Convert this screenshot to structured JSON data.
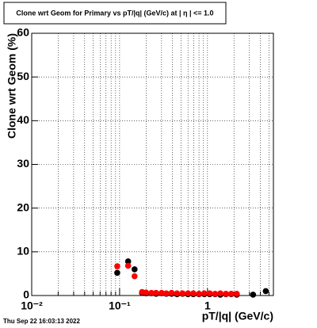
{
  "chart_data": {
    "type": "scatter",
    "title": "Clone wrt Geom for Primary vs pT/|q| (GeV/c) at |  η  | <= 1.0",
    "x_label": "pT/|q| (GeV/c)",
    "y_label": "Clone wrt Geom (%)",
    "timestamp": "Thu Sep 22 16:03:13 2022",
    "xscale": "log",
    "xlim": [
      0.01,
      5.62
    ],
    "ylim": [
      0,
      60
    ],
    "xticks": [
      {
        "value": 0.01,
        "label": "10⁻²"
      },
      {
        "value": 0.1,
        "label": "10⁻¹"
      },
      1
    ],
    "xminorticks": [
      0.02,
      0.03,
      0.04,
      0.05,
      0.06,
      0.07,
      0.08,
      0.09,
      0.2,
      0.3,
      0.4,
      0.5,
      0.6,
      0.7,
      0.8,
      0.9,
      2,
      3,
      4,
      5
    ],
    "yticks": [
      0,
      10,
      20,
      30,
      40,
      50,
      60
    ],
    "grid": true,
    "series": [
      {
        "name": "black",
        "color": "#000000",
        "x": [
          0.094,
          0.125,
          0.148,
          0.18,
          0.2,
          0.23,
          0.26,
          0.3,
          0.34,
          0.39,
          0.45,
          0.52,
          0.6,
          0.69,
          0.8,
          0.92,
          1.06,
          1.22,
          1.4,
          1.62,
          1.86,
          2.15,
          3.3,
          4.6
        ],
        "values": [
          5.2,
          7.8,
          6.0,
          0.6,
          0.5,
          0.5,
          0.4,
          0.5,
          0.4,
          0.4,
          0.3,
          0.4,
          0.3,
          0.3,
          0.3,
          0.3,
          0.3,
          0.3,
          0.2,
          0.3,
          0.3,
          0.2,
          0.2,
          1.0
        ]
      },
      {
        "name": "red",
        "color": "#ff0000",
        "x": [
          0.094,
          0.125,
          0.148,
          0.18,
          0.2,
          0.23,
          0.26,
          0.3,
          0.34,
          0.39,
          0.45,
          0.52,
          0.6,
          0.69,
          0.8,
          0.92,
          1.06,
          1.22,
          1.4,
          1.62,
          1.86,
          2.15
        ],
        "values": [
          6.7,
          6.8,
          4.4,
          0.8,
          0.7,
          0.6,
          0.6,
          0.6,
          0.5,
          0.6,
          0.5,
          0.5,
          0.5,
          0.5,
          0.4,
          0.5,
          0.5,
          0.4,
          0.5,
          0.4,
          0.4,
          0.4
        ]
      }
    ]
  }
}
